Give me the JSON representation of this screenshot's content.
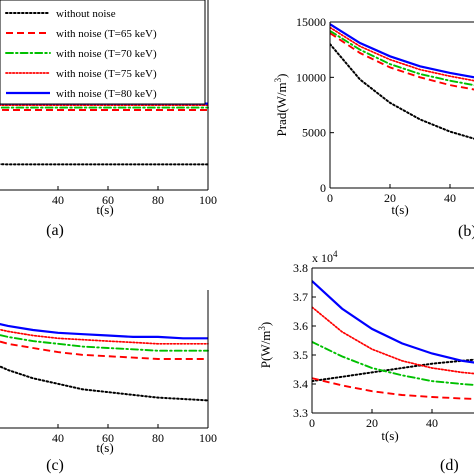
{
  "legend": {
    "entries": [
      {
        "label": "without noise",
        "color": "#000000",
        "dash": "dotted"
      },
      {
        "label": "with noise (T=65 keV)",
        "color": "#ff0000",
        "dash": "dashed"
      },
      {
        "label": "with noise (T=70 keV)",
        "color": "#00c000",
        "dash": "dashdot"
      },
      {
        "label": "with noise (T=75 keV)",
        "color": "#ff0000",
        "dash": "dotted-fine"
      },
      {
        "label": "with noise (T=80 keV)",
        "color": "#0000ff",
        "dash": "solid"
      }
    ]
  },
  "chart_data": [
    {
      "id": "a",
      "type": "line",
      "panel_label": "(a)",
      "xlabel": "t(s)",
      "ylabel": "",
      "xlim": [
        0,
        100
      ],
      "ylim": [
        0,
        1
      ],
      "x_ticks": [
        40,
        60,
        80,
        100
      ],
      "y_ticks": [],
      "x_visible_from": 25,
      "series": [
        {
          "name": "without noise",
          "color": "#000000",
          "dash": "dotted",
          "x": [
            0,
            20,
            40,
            60,
            80,
            100
          ],
          "y": [
            0.17,
            0.16,
            0.16,
            0.16,
            0.16,
            0.16
          ]
        },
        {
          "name": "with noise (T=65 keV)",
          "color": "#ff0000",
          "dash": "dashed",
          "x": [
            0,
            20,
            40,
            60,
            80,
            100
          ],
          "y": [
            0.505,
            0.5,
            0.5,
            0.5,
            0.5,
            0.5
          ]
        },
        {
          "name": "with noise (T=70 keV)",
          "color": "#00c000",
          "dash": "dashdot",
          "x": [
            0,
            20,
            40,
            60,
            80,
            100
          ],
          "y": [
            0.515,
            0.515,
            0.515,
            0.515,
            0.515,
            0.515
          ]
        },
        {
          "name": "with noise (T=75 keV)",
          "color": "#ff0000",
          "dash": "dotted-fine",
          "x": [
            0,
            20,
            40,
            60,
            80,
            100
          ],
          "y": [
            0.53,
            0.53,
            0.53,
            0.53,
            0.53,
            0.53
          ]
        },
        {
          "name": "with noise (T=80 keV)",
          "color": "#0000ff",
          "dash": "solid",
          "x": [
            0,
            20,
            40,
            60,
            80,
            100
          ],
          "y": [
            0.54,
            0.54,
            0.54,
            0.54,
            0.54,
            0.54
          ]
        }
      ]
    },
    {
      "id": "b",
      "type": "line",
      "panel_label": "(b)",
      "xlabel": "t(s)",
      "ylabel": "Prad(W/m",
      "ylabel_sup": "3",
      "ylabel_close": ")",
      "xlim": [
        0,
        100
      ],
      "ylim": [
        0,
        15000
      ],
      "x_ticks": [
        0,
        20,
        40
      ],
      "y_ticks": [
        0,
        5000,
        10000,
        15000
      ],
      "series": [
        {
          "name": "without noise",
          "color": "#000000",
          "dash": "dotted",
          "x": [
            0,
            10,
            20,
            30,
            40,
            50,
            60,
            70,
            80,
            90,
            100
          ],
          "y": [
            13000,
            9800,
            7700,
            6200,
            5100,
            4300,
            3800,
            3400,
            3100,
            2900,
            2800
          ]
        },
        {
          "name": "with noise (T=65 keV)",
          "color": "#ff0000",
          "dash": "dashed",
          "x": [
            0,
            10,
            20,
            30,
            40,
            50,
            60,
            70,
            80,
            90,
            100
          ],
          "y": [
            14000,
            12200,
            10900,
            10000,
            9300,
            8800,
            8500,
            8300,
            8100,
            8000,
            7900
          ]
        },
        {
          "name": "with noise (T=70 keV)",
          "color": "#00c000",
          "dash": "dashdot",
          "x": [
            0,
            10,
            20,
            30,
            40,
            50,
            60,
            70,
            80,
            90,
            100
          ],
          "y": [
            14200,
            12500,
            11200,
            10300,
            9700,
            9200,
            8900,
            8700,
            8500,
            8400,
            8300
          ]
        },
        {
          "name": "with noise (T=75 keV)",
          "color": "#ff0000",
          "dash": "dotted-fine",
          "x": [
            0,
            10,
            20,
            30,
            40,
            50,
            60,
            70,
            80,
            90,
            100
          ],
          "y": [
            14500,
            12800,
            11600,
            10700,
            10100,
            9600,
            9300,
            9100,
            8900,
            8800,
            8700
          ]
        },
        {
          "name": "with noise (T=80 keV)",
          "color": "#0000ff",
          "dash": "solid",
          "x": [
            0,
            10,
            20,
            30,
            40,
            50,
            60,
            70,
            80,
            90,
            100
          ],
          "y": [
            14800,
            13100,
            11900,
            11000,
            10400,
            9900,
            9600,
            9400,
            9200,
            9100,
            9000
          ]
        }
      ]
    },
    {
      "id": "c",
      "type": "line",
      "panel_label": "(c)",
      "xlabel": "t(s)",
      "ylabel": "",
      "xlim": [
        0,
        100
      ],
      "ylim": [
        0,
        1
      ],
      "x_ticks": [
        40,
        60,
        80,
        100
      ],
      "y_ticks": [],
      "x_visible_from": 25,
      "series": [
        {
          "name": "without noise",
          "color": "#000000",
          "dash": "dotted",
          "x": [
            0,
            10,
            20,
            30,
            40,
            50,
            60,
            70,
            80,
            90,
            100
          ],
          "y": [
            0.6,
            0.5,
            0.42,
            0.36,
            0.32,
            0.28,
            0.26,
            0.24,
            0.22,
            0.21,
            0.2
          ]
        },
        {
          "name": "with noise (T=65 keV)",
          "color": "#ff0000",
          "dash": "dashed",
          "x": [
            0,
            10,
            20,
            30,
            40,
            50,
            60,
            70,
            80,
            90,
            100
          ],
          "y": [
            0.72,
            0.66,
            0.61,
            0.58,
            0.55,
            0.53,
            0.52,
            0.51,
            0.5,
            0.5,
            0.5
          ]
        },
        {
          "name": "with noise (T=70 keV)",
          "color": "#00c000",
          "dash": "dashdot",
          "x": [
            0,
            10,
            20,
            30,
            40,
            50,
            60,
            70,
            80,
            90,
            100
          ],
          "y": [
            0.75,
            0.7,
            0.66,
            0.63,
            0.61,
            0.59,
            0.58,
            0.57,
            0.56,
            0.56,
            0.56
          ]
        },
        {
          "name": "with noise (T=75 keV)",
          "color": "#ff0000",
          "dash": "dotted-fine",
          "x": [
            0,
            10,
            20,
            30,
            40,
            50,
            60,
            70,
            80,
            90,
            100
          ],
          "y": [
            0.78,
            0.74,
            0.7,
            0.67,
            0.65,
            0.64,
            0.63,
            0.62,
            0.61,
            0.61,
            0.61
          ]
        },
        {
          "name": "with noise (T=80 keV)",
          "color": "#0000ff",
          "dash": "solid",
          "x": [
            0,
            10,
            20,
            30,
            40,
            50,
            60,
            70,
            80,
            90,
            100
          ],
          "y": [
            0.82,
            0.78,
            0.74,
            0.71,
            0.69,
            0.68,
            0.67,
            0.66,
            0.66,
            0.65,
            0.65
          ]
        }
      ]
    },
    {
      "id": "d",
      "type": "line",
      "panel_label": "(d)",
      "xlabel": "t(s)",
      "ylabel": "P(W/m",
      "ylabel_sup": "3",
      "ylabel_close": ")",
      "exponent_label": "x 10",
      "exponent_power": "4",
      "xlim": [
        0,
        100
      ],
      "ylim": [
        3.3,
        3.8
      ],
      "x_ticks": [
        0,
        20,
        40
      ],
      "y_ticks": [
        3.3,
        3.4,
        3.5,
        3.6,
        3.7,
        3.8
      ],
      "series": [
        {
          "name": "without noise",
          "color": "#000000",
          "dash": "dotted",
          "x": [
            0,
            10,
            20,
            30,
            40,
            50,
            60,
            70,
            80,
            90,
            100
          ],
          "y": [
            3.41,
            3.425,
            3.44,
            3.455,
            3.47,
            3.48,
            3.49,
            3.5,
            3.505,
            3.51,
            3.515
          ]
        },
        {
          "name": "with noise (T=65 keV)",
          "color": "#ff0000",
          "dash": "dashed",
          "x": [
            0,
            10,
            20,
            30,
            40,
            50,
            60,
            70,
            80,
            90,
            100
          ],
          "y": [
            3.42,
            3.395,
            3.375,
            3.362,
            3.355,
            3.35,
            3.347,
            3.345,
            3.343,
            3.342,
            3.341
          ]
        },
        {
          "name": "with noise (T=70 keV)",
          "color": "#00c000",
          "dash": "dashdot",
          "x": [
            0,
            10,
            20,
            30,
            40,
            50,
            60,
            70,
            80,
            90,
            100
          ],
          "y": [
            3.545,
            3.495,
            3.455,
            3.43,
            3.41,
            3.4,
            3.392,
            3.387,
            3.384,
            3.382,
            3.38
          ]
        },
        {
          "name": "with noise (T=75 keV)",
          "color": "#ff0000",
          "dash": "dotted-fine",
          "x": [
            0,
            10,
            20,
            30,
            40,
            50,
            60,
            70,
            80,
            90,
            100
          ],
          "y": [
            3.665,
            3.58,
            3.52,
            3.48,
            3.455,
            3.44,
            3.43,
            3.425,
            3.42,
            3.418,
            3.416
          ]
        },
        {
          "name": "with noise (T=80 keV)",
          "color": "#0000ff",
          "dash": "solid",
          "x": [
            0,
            10,
            20,
            30,
            40,
            50,
            60,
            70,
            80,
            90,
            100
          ],
          "y": [
            3.755,
            3.66,
            3.59,
            3.54,
            3.505,
            3.48,
            3.465,
            3.455,
            3.448,
            3.444,
            3.44
          ]
        }
      ]
    }
  ]
}
